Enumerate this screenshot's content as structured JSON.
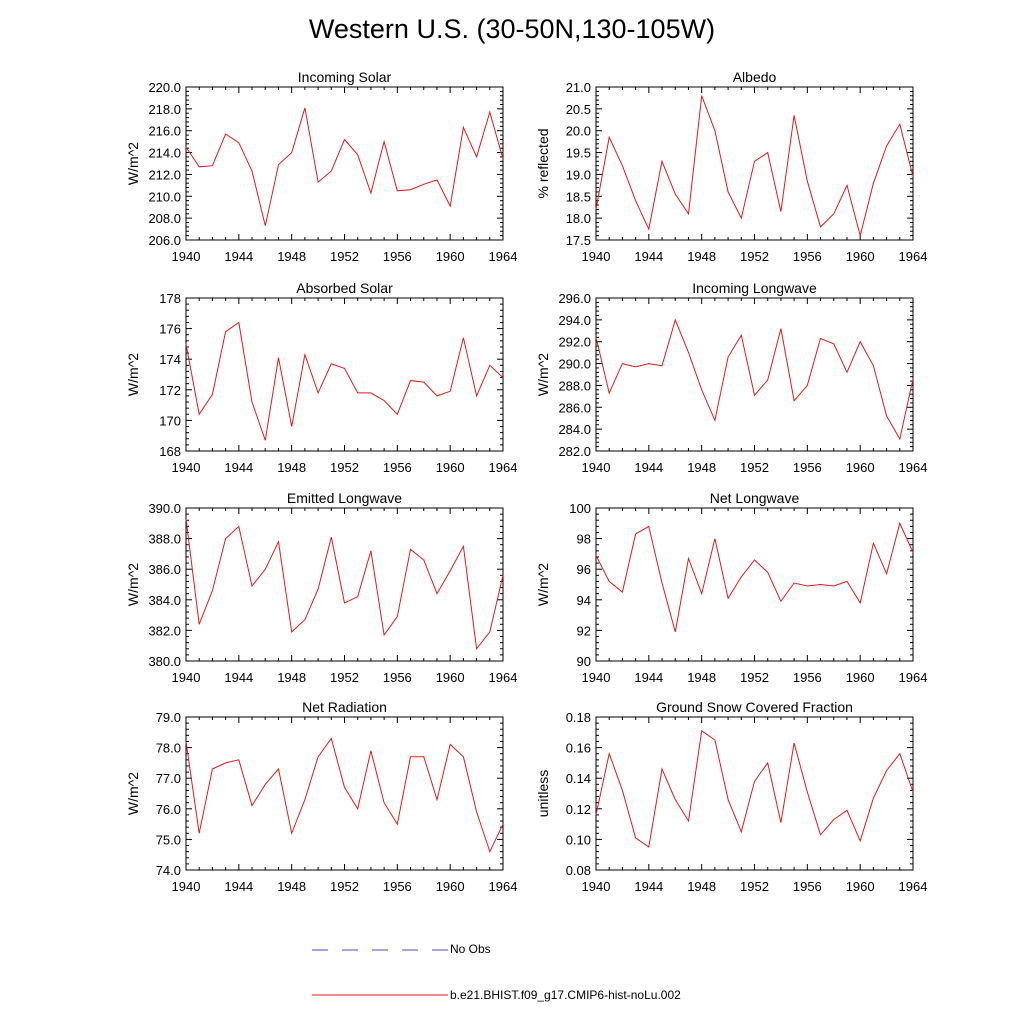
{
  "title": "Western U.S. (30-50N,130-105W)",
  "legend": [
    {
      "label": "No Obs",
      "color": "#4c4cb3",
      "dash": "dashed"
    },
    {
      "label": "b.e21.BHIST.f09_g17.CMIP6-hist-noLu.002",
      "color": "#e31a1c",
      "dash": "solid"
    }
  ],
  "chart_data": [
    {
      "type": "line",
      "title": "Incoming Solar",
      "ylabel": "W/m^2",
      "xlim": [
        1940,
        1964
      ],
      "ylim": [
        206,
        220
      ],
      "yticks": [
        "206.0",
        "208.0",
        "210.0",
        "212.0",
        "214.0",
        "216.0",
        "218.0",
        "220.0"
      ],
      "xticks": [
        "1940",
        "1944",
        "1948",
        "1952",
        "1956",
        "1960",
        "1964"
      ],
      "series": [
        {
          "color": "#e31a1c",
          "x": [
            1940,
            1941,
            1942,
            1943,
            1944,
            1945,
            1946,
            1947,
            1948,
            1949,
            1950,
            1951,
            1952,
            1953,
            1954,
            1955,
            1956,
            1957,
            1958,
            1959,
            1960,
            1961,
            1962,
            1963,
            1964
          ],
          "values": [
            214.5,
            212.7,
            212.8,
            215.7,
            214.9,
            212.3,
            207.3,
            212.9,
            214.0,
            218.1,
            211.3,
            212.3,
            215.2,
            213.8,
            210.3,
            215.0,
            210.5,
            210.6,
            211.1,
            211.5,
            209.1,
            216.3,
            213.6,
            217.7,
            213.4
          ]
        }
      ]
    },
    {
      "type": "line",
      "title": "Albedo",
      "ylabel": "% reflected",
      "xlim": [
        1940,
        1964
      ],
      "ylim": [
        17.5,
        21
      ],
      "yticks": [
        "17.5",
        "18.0",
        "18.5",
        "19.0",
        "19.5",
        "20.0",
        "20.5",
        "21.0"
      ],
      "xticks": [
        "1940",
        "1944",
        "1948",
        "1952",
        "1956",
        "1960",
        "1964"
      ],
      "series": [
        {
          "color": "#e31a1c",
          "x": [
            1940,
            1941,
            1942,
            1943,
            1944,
            1945,
            1946,
            1947,
            1948,
            1949,
            1950,
            1951,
            1952,
            1953,
            1954,
            1955,
            1956,
            1957,
            1958,
            1959,
            1960,
            1961,
            1962,
            1963,
            1964
          ],
          "values": [
            18.2,
            19.85,
            19.2,
            18.4,
            17.75,
            19.3,
            18.55,
            18.1,
            20.8,
            20.0,
            18.6,
            18.0,
            19.3,
            19.5,
            18.15,
            20.35,
            18.85,
            17.8,
            18.1,
            18.75,
            17.6,
            18.8,
            19.65,
            20.15,
            18.95
          ]
        }
      ]
    },
    {
      "type": "line",
      "title": "Absorbed Solar",
      "ylabel": "W/m^2",
      "xlim": [
        1940,
        1964
      ],
      "ylim": [
        168,
        178
      ],
      "yticks": [
        "168",
        "170",
        "172",
        "174",
        "176",
        "178"
      ],
      "xticks": [
        "1940",
        "1944",
        "1948",
        "1952",
        "1956",
        "1960",
        "1964"
      ],
      "series": [
        {
          "color": "#e31a1c",
          "x": [
            1940,
            1941,
            1942,
            1943,
            1944,
            1945,
            1946,
            1947,
            1948,
            1949,
            1950,
            1951,
            1952,
            1953,
            1954,
            1955,
            1956,
            1957,
            1958,
            1959,
            1960,
            1961,
            1962,
            1963,
            1964
          ],
          "values": [
            175.0,
            170.4,
            171.7,
            175.8,
            176.4,
            171.2,
            168.7,
            174.1,
            169.6,
            174.3,
            171.8,
            173.7,
            173.4,
            171.8,
            171.8,
            171.3,
            170.4,
            172.6,
            172.5,
            171.6,
            171.9,
            175.4,
            171.6,
            173.6,
            172.8
          ]
        }
      ]
    },
    {
      "type": "line",
      "title": "Incoming Longwave",
      "ylabel": "W/m^2",
      "xlim": [
        1940,
        1964
      ],
      "ylim": [
        282,
        296
      ],
      "yticks": [
        "282.0",
        "284.0",
        "286.0",
        "288.0",
        "290.0",
        "292.0",
        "294.0",
        "296.0"
      ],
      "xticks": [
        "1940",
        "1944",
        "1948",
        "1952",
        "1956",
        "1960",
        "1964"
      ],
      "series": [
        {
          "color": "#e31a1c",
          "x": [
            1940,
            1941,
            1942,
            1943,
            1944,
            1945,
            1946,
            1947,
            1948,
            1949,
            1950,
            1951,
            1952,
            1953,
            1954,
            1955,
            1956,
            1957,
            1958,
            1959,
            1960,
            1961,
            1962,
            1963,
            1964
          ],
          "values": [
            292.4,
            287.3,
            290.0,
            289.7,
            290.0,
            289.8,
            294.0,
            291.0,
            287.6,
            284.8,
            290.6,
            292.6,
            287.1,
            288.5,
            293.2,
            286.6,
            288.0,
            292.3,
            291.8,
            289.2,
            292.0,
            289.8,
            285.2,
            283.1,
            288.6
          ]
        }
      ]
    },
    {
      "type": "line",
      "title": "Emitted Longwave",
      "ylabel": "W/m^2",
      "xlim": [
        1940,
        1964
      ],
      "ylim": [
        380,
        390
      ],
      "yticks": [
        "380.0",
        "382.0",
        "384.0",
        "386.0",
        "388.0",
        "390.0"
      ],
      "xticks": [
        "1940",
        "1944",
        "1948",
        "1952",
        "1956",
        "1960",
        "1964"
      ],
      "series": [
        {
          "color": "#e31a1c",
          "x": [
            1940,
            1941,
            1942,
            1943,
            1944,
            1945,
            1946,
            1947,
            1948,
            1949,
            1950,
            1951,
            1952,
            1953,
            1954,
            1955,
            1956,
            1957,
            1958,
            1959,
            1960,
            1961,
            1962,
            1963,
            1964
          ],
          "values": [
            389.3,
            382.4,
            384.6,
            388.0,
            388.8,
            384.9,
            386.0,
            387.8,
            381.9,
            382.7,
            384.7,
            388.1,
            383.8,
            384.2,
            387.2,
            381.7,
            382.9,
            387.3,
            386.6,
            384.4,
            385.9,
            387.5,
            380.8,
            381.9,
            385.6
          ]
        }
      ]
    },
    {
      "type": "line",
      "title": "Net Longwave",
      "ylabel": "W/m^2",
      "xlim": [
        1940,
        1964
      ],
      "ylim": [
        90,
        100
      ],
      "yticks": [
        "90",
        "92",
        "94",
        "96",
        "98",
        "100"
      ],
      "xticks": [
        "1940",
        "1944",
        "1948",
        "1952",
        "1956",
        "1960",
        "1964"
      ],
      "series": [
        {
          "color": "#e31a1c",
          "x": [
            1940,
            1941,
            1942,
            1943,
            1944,
            1945,
            1946,
            1947,
            1948,
            1949,
            1950,
            1951,
            1952,
            1953,
            1954,
            1955,
            1956,
            1957,
            1958,
            1959,
            1960,
            1961,
            1962,
            1963,
            1964
          ],
          "values": [
            96.9,
            95.2,
            94.5,
            98.3,
            98.8,
            95.1,
            91.9,
            96.7,
            94.4,
            98.0,
            94.1,
            95.5,
            96.6,
            95.8,
            93.9,
            95.1,
            94.9,
            95.0,
            94.9,
            95.2,
            93.8,
            97.7,
            95.7,
            99.0,
            97.1
          ]
        }
      ]
    },
    {
      "type": "line",
      "title": "Net Radiation",
      "ylabel": "W/m^2",
      "xlim": [
        1940,
        1964
      ],
      "ylim": [
        74,
        79
      ],
      "yticks": [
        "74.0",
        "75.0",
        "76.0",
        "77.0",
        "78.0",
        "79.0"
      ],
      "xticks": [
        "1940",
        "1944",
        "1948",
        "1952",
        "1956",
        "1960",
        "1964"
      ],
      "series": [
        {
          "color": "#e31a1c",
          "x": [
            1940,
            1941,
            1942,
            1943,
            1944,
            1945,
            1946,
            1947,
            1948,
            1949,
            1950,
            1951,
            1952,
            1953,
            1954,
            1955,
            1956,
            1957,
            1958,
            1959,
            1960,
            1961,
            1962,
            1963,
            1964
          ],
          "values": [
            78.2,
            75.2,
            77.3,
            77.5,
            77.6,
            76.1,
            76.8,
            77.3,
            75.2,
            76.3,
            77.7,
            78.3,
            76.7,
            76.0,
            77.9,
            76.2,
            75.5,
            77.7,
            77.7,
            76.3,
            78.1,
            77.7,
            75.9,
            74.6,
            75.5
          ]
        }
      ]
    },
    {
      "type": "line",
      "title": "Ground Snow Covered Fraction",
      "ylabel": "unitless",
      "xlim": [
        1940,
        1964
      ],
      "ylim": [
        0.08,
        0.18
      ],
      "yticks": [
        "0.08",
        "0.10",
        "0.12",
        "0.14",
        "0.16",
        "0.18"
      ],
      "xticks": [
        "1940",
        "1944",
        "1948",
        "1952",
        "1956",
        "1960",
        "1964"
      ],
      "series": [
        {
          "color": "#e31a1c",
          "x": [
            1940,
            1941,
            1942,
            1943,
            1944,
            1945,
            1946,
            1947,
            1948,
            1949,
            1950,
            1951,
            1952,
            1953,
            1954,
            1955,
            1956,
            1957,
            1958,
            1959,
            1960,
            1961,
            1962,
            1963,
            1964
          ],
          "values": [
            0.116,
            0.156,
            0.132,
            0.101,
            0.095,
            0.146,
            0.126,
            0.112,
            0.171,
            0.165,
            0.126,
            0.105,
            0.138,
            0.15,
            0.111,
            0.163,
            0.131,
            0.103,
            0.113,
            0.119,
            0.099,
            0.127,
            0.145,
            0.156,
            0.131
          ]
        }
      ]
    }
  ]
}
